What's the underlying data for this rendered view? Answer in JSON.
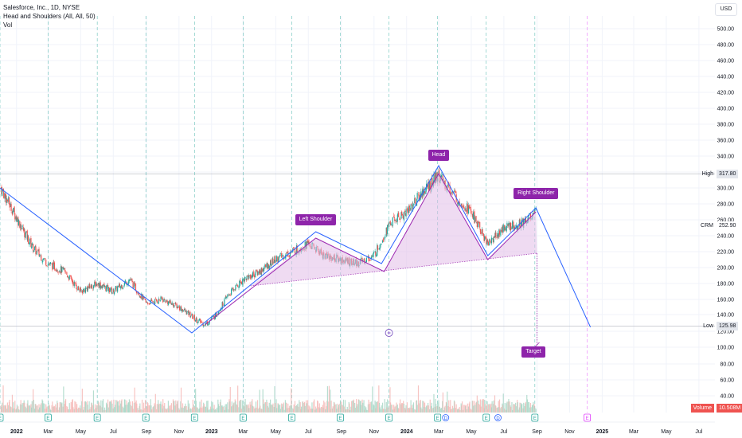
{
  "legend": {
    "symbol": "Salesforce, Inc., 1D, NYSE",
    "indicator": "Head and Shoulders (All, All, 50)",
    "volume": "Vol"
  },
  "currency": "USD",
  "chart_data": {
    "type": "line",
    "symbol": "CRM",
    "y_scale": "log",
    "ylim": [
      30,
      560
    ],
    "y_ticks": [
      40,
      60,
      80,
      100,
      120,
      140,
      160,
      180,
      200,
      220,
      240,
      260,
      280,
      300,
      320,
      340,
      360,
      380,
      400,
      420,
      440,
      460,
      480,
      500
    ],
    "y_tick_labels": [
      "40.00",
      "60.00",
      "80.00",
      "100.00",
      "120.00",
      "140.00",
      "160.00",
      "180.00",
      "200.00",
      "220.00",
      "240.00",
      "260.00",
      "280.00",
      "300.00",
      "320.00",
      "340.00",
      "360.00",
      "380.00",
      "400.00",
      "420.00",
      "440.00",
      "460.00",
      "480.00",
      "500.00"
    ],
    "x_range": [
      "2021-12-01",
      "2025-07-31"
    ],
    "x_ticks": [
      {
        "date": "2022-01-01",
        "label": "2022"
      },
      {
        "date": "2022-03-01",
        "label": "Mar"
      },
      {
        "date": "2022-05-01",
        "label": "May"
      },
      {
        "date": "2022-07-01",
        "label": "Jul"
      },
      {
        "date": "2022-09-01",
        "label": "Sep"
      },
      {
        "date": "2022-11-01",
        "label": "Nov"
      },
      {
        "date": "2023-01-01",
        "label": "2023"
      },
      {
        "date": "2023-03-01",
        "label": "Mar"
      },
      {
        "date": "2023-05-01",
        "label": "May"
      },
      {
        "date": "2023-07-01",
        "label": "Jul"
      },
      {
        "date": "2023-09-01",
        "label": "Sep"
      },
      {
        "date": "2023-11-01",
        "label": "Nov"
      },
      {
        "date": "2024-01-01",
        "label": "2024"
      },
      {
        "date": "2024-03-01",
        "label": "Mar"
      },
      {
        "date": "2024-05-01",
        "label": "May"
      },
      {
        "date": "2024-07-01",
        "label": "Jul"
      },
      {
        "date": "2024-09-01",
        "label": "Sep"
      },
      {
        "date": "2024-11-01",
        "label": "Nov"
      },
      {
        "date": "2025-01-01",
        "label": "2025"
      },
      {
        "date": "2025-03-01",
        "label": "Mar"
      },
      {
        "date": "2025-05-01",
        "label": "May"
      },
      {
        "date": "2025-07-01",
        "label": "Jul"
      }
    ],
    "price_path": [
      [
        "2021-12-03",
        300
      ],
      [
        "2022-01-05",
        258
      ],
      [
        "2022-02-01",
        225
      ],
      [
        "2022-03-01",
        205
      ],
      [
        "2022-04-01",
        195
      ],
      [
        "2022-05-01",
        170
      ],
      [
        "2022-06-01",
        180
      ],
      [
        "2022-07-01",
        170
      ],
      [
        "2022-08-01",
        185
      ],
      [
        "2022-09-01",
        155
      ],
      [
        "2022-10-01",
        160
      ],
      [
        "2022-11-01",
        150
      ],
      [
        "2022-12-01",
        135
      ],
      [
        "2022-12-20",
        128
      ],
      [
        "2023-01-10",
        140
      ],
      [
        "2023-02-01",
        165
      ],
      [
        "2023-03-01",
        185
      ],
      [
        "2023-04-01",
        195
      ],
      [
        "2023-05-01",
        210
      ],
      [
        "2023-06-01",
        220
      ],
      [
        "2023-07-01",
        230
      ],
      [
        "2023-08-01",
        215
      ],
      [
        "2023-09-01",
        210
      ],
      [
        "2023-10-01",
        205
      ],
      [
        "2023-11-01",
        215
      ],
      [
        "2023-12-01",
        255
      ],
      [
        "2024-01-01",
        270
      ],
      [
        "2024-02-01",
        295
      ],
      [
        "2024-03-01",
        315
      ],
      [
        "2024-04-01",
        290
      ],
      [
        "2024-05-01",
        270
      ],
      [
        "2024-06-01",
        230
      ],
      [
        "2024-07-01",
        250
      ],
      [
        "2024-08-01",
        255
      ],
      [
        "2024-08-30",
        270
      ]
    ],
    "zigzag_blue": [
      [
        "2021-12-01",
        300
      ],
      [
        "2022-11-25",
        118
      ],
      [
        "2023-07-15",
        245
      ],
      [
        "2023-11-15",
        205
      ],
      [
        "2024-03-01",
        328
      ],
      [
        "2024-06-01",
        215
      ],
      [
        "2024-08-30",
        275
      ],
      [
        "2024-12-10",
        125
      ]
    ],
    "zigzag_purple": [
      [
        "2022-12-20",
        128
      ],
      [
        "2023-07-15",
        237
      ],
      [
        "2023-11-20",
        195
      ],
      [
        "2024-03-01",
        318
      ],
      [
        "2024-06-01",
        210
      ],
      [
        "2024-08-30",
        270
      ]
    ],
    "neckline": [
      [
        "2023-03-15",
        177
      ],
      [
        "2024-09-01",
        218
      ]
    ],
    "target_point": [
      "2024-09-01",
      103
    ],
    "pattern_labels": [
      {
        "text": "Left Shoulder",
        "date": "2023-07-15",
        "price": 237
      },
      {
        "text": "Head",
        "date": "2024-03-01",
        "price": 318
      },
      {
        "text": "Right Shoulder",
        "date": "2024-08-30",
        "price": 270
      },
      {
        "text": "Target",
        "date": "2024-08-25",
        "price": 103
      }
    ],
    "high": {
      "label": "High",
      "value": "317.80",
      "price": 317.8
    },
    "low": {
      "label": "Low",
      "value": "125.98",
      "price": 125.98
    },
    "last": {
      "label": "CRM",
      "value": "252.90",
      "price": 252.9
    },
    "volume": {
      "label": "Volume",
      "value": "10.508M"
    },
    "earnings_dates": [
      "2021-12-01",
      "2022-03-01",
      "2022-06-01",
      "2022-08-31",
      "2022-11-30",
      "2023-03-01",
      "2023-05-31",
      "2023-08-30",
      "2023-11-29",
      "2024-02-28",
      "2024-05-29",
      "2024-08-28",
      "2024-12-04"
    ],
    "dividend_dates": [
      "2024-03-14",
      "2024-06-20"
    ],
    "events": [
      {
        "date": "2023-11-29",
        "price": 118
      }
    ]
  }
}
